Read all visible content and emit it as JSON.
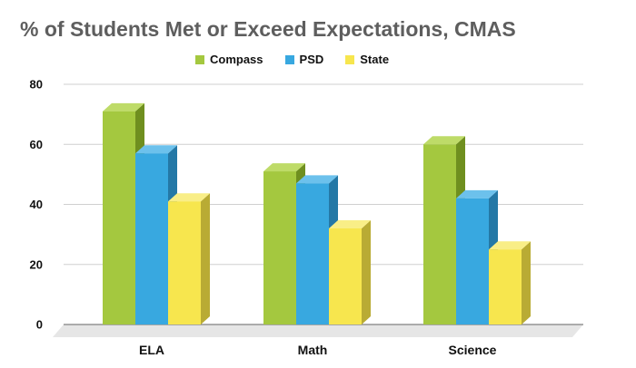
{
  "chart_data": {
    "type": "bar",
    "title": "% of Students Met or Exceed Expectations, CMAS",
    "categories": [
      "ELA",
      "Math",
      "Science"
    ],
    "series": [
      {
        "name": "Compass",
        "values": [
          71,
          51,
          60
        ],
        "color": "#a4c83f",
        "side": "#6f8f1f",
        "top": "#bedb68"
      },
      {
        "name": "PSD",
        "values": [
          57,
          47,
          42
        ],
        "color": "#38a8e0",
        "side": "#2478a6",
        "top": "#6cc1ec"
      },
      {
        "name": "State",
        "values": [
          41,
          32,
          25
        ],
        "color": "#f7e64e",
        "side": "#b9ab34",
        "top": "#f9ee87"
      }
    ],
    "yticks": [
      "0",
      "20",
      "40",
      "60",
      "80"
    ],
    "ylim": [
      0,
      80
    ],
    "xlabel": "",
    "ylabel": "",
    "legend_position": "top",
    "grid": true
  }
}
